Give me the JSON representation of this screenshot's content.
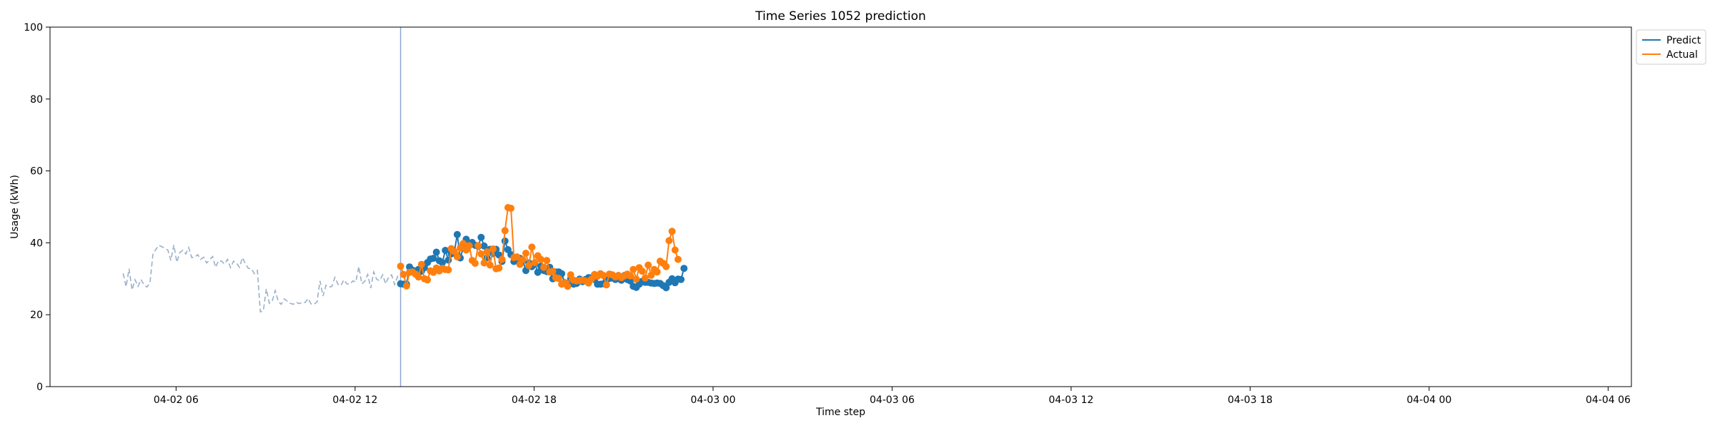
{
  "chart_data": {
    "type": "line",
    "title": "Time Series 1052 prediction",
    "xlabel": "Time step",
    "ylabel": "Usage (kWh)",
    "ylim": [
      0,
      100
    ],
    "yticks": [
      0,
      20,
      40,
      60,
      80,
      100
    ],
    "xlim_hours": [
      0,
      150
    ],
    "xticks": [
      {
        "h": 10,
        "label": "04-02 06"
      },
      {
        "h": 30,
        "label": "04-02 12"
      },
      {
        "h": 50,
        "label": "04-02 18"
      },
      {
        "h": 70,
        "label": "04-03 00"
      },
      {
        "h": 90,
        "label": "04-03 06"
      },
      {
        "h": 110,
        "label": "04-03 12"
      },
      {
        "h": 130,
        "label": "04-03 18"
      },
      {
        "h": 150,
        "label": "04-04 00"
      },
      {
        "h": 170,
        "label": "04-04 06"
      }
    ],
    "x_axis_note": "x values are 20-minute steps starting 04-02 04:05; tick labels give calendar time",
    "history": {
      "style": "dashed",
      "color": "#9ab0c9",
      "values": [
        31.5,
        27.8,
        32.8,
        26.9,
        29.7,
        27.9,
        29.8,
        28.3,
        27.7,
        28.9,
        36.8,
        38.2,
        39.3,
        38.9,
        38.5,
        38.0,
        35.1,
        39.4,
        34.6,
        37.3,
        37.9,
        36.9,
        38.7,
        35.9,
        36.0,
        36.7,
        35.4,
        36.0,
        34.4,
        35.2,
        36.2,
        33.2,
        35.1,
        34.9,
        34.1,
        35.4,
        33.1,
        34.9,
        34.4,
        33.2,
        35.9,
        34.1,
        32.9,
        32.8,
        31.4,
        32.3,
        20.8,
        21.1,
        27.2,
        23.2,
        23.8,
        26.7,
        23.7,
        22.9,
        24.4,
        23.8,
        23.2,
        22.9,
        23.5,
        23.1,
        23.4,
        23.4,
        24.5,
        23.0,
        22.9,
        23.6,
        29.4,
        25.2,
        28.2,
        27.7,
        27.9,
        30.4,
        28.5,
        28.1,
        29.7,
        28.6,
        28.5,
        29.4,
        29.1,
        33.4,
        28.6,
        29.3,
        31.2,
        27.4,
        31.9,
        29.8,
        29.5,
        31.1,
        28.6,
        30.5,
        31.1,
        28.4,
        30.6,
        28.4
      ]
    },
    "forecast_start_index": 93,
    "series": [
      {
        "name": "Predict",
        "color": "#1f77b4",
        "values": [
          28.6,
          28.5,
          28.5,
          33.3,
          32.4,
          31.9,
          32.6,
          32.1,
          33.1,
          34.5,
          35.5,
          35.7,
          37.4,
          35.0,
          34.5,
          37.9,
          35.2,
          36.9,
          37.4,
          42.3,
          35.8,
          38.6,
          41.0,
          39.4,
          40.1,
          39.3,
          39.0,
          41.5,
          39.1,
          35.8,
          38.2,
          37.0,
          38.2,
          36.6,
          34.8,
          40.5,
          38.1,
          36.7,
          34.8,
          35.5,
          35.7,
          35.1,
          32.3,
          34.4,
          33.4,
          34.3,
          31.8,
          33.5,
          32.3,
          32.0,
          33.2,
          30.0,
          31.9,
          31.9,
          31.4,
          28.9,
          28.3,
          30.0,
          28.5,
          28.7,
          29.9,
          29.2,
          29.8,
          30.3,
          30.3,
          29.8,
          28.5,
          28.5,
          28.6,
          29.7,
          30.1,
          30.2,
          29.8,
          30.9,
          29.6,
          30.9,
          29.8,
          29.4,
          27.9,
          27.6,
          28.5,
          29.3,
          29.0,
          29.0,
          28.8,
          28.7,
          28.8,
          28.7,
          28.1,
          27.5,
          29.0,
          30.0,
          28.9,
          29.9,
          29.8,
          32.9
        ]
      },
      {
        "name": "Actual",
        "color": "#ff7f0e",
        "values": [
          33.5,
          31.2,
          28.0,
          31.8,
          31.9,
          31.3,
          30.5,
          34.0,
          30.0,
          29.7,
          32.2,
          31.8,
          33.0,
          32.2,
          32.9,
          32.6,
          32.5,
          38.4,
          37.6,
          36.1,
          38.6,
          39.8,
          38.0,
          39.2,
          35.1,
          34.3,
          39.2,
          36.9,
          34.4,
          37.5,
          33.8,
          38.3,
          32.8,
          33.0,
          35.4,
          43.4,
          49.8,
          49.6,
          35.9,
          36.1,
          34.0,
          35.3,
          37.1,
          33.7,
          38.8,
          34.5,
          36.4,
          35.4,
          33.2,
          35.1,
          31.9,
          32.1,
          30.3,
          30.1,
          28.5,
          28.8,
          27.9,
          31.1,
          29.6,
          29.4,
          29.5,
          29.6,
          29.4,
          28.8,
          29.9,
          31.2,
          30.7,
          31.4,
          30.9,
          28.3,
          31.3,
          31.1,
          30.5,
          30.9,
          30.3,
          30.8,
          31.3,
          30.8,
          32.6,
          29.9,
          33.1,
          32.1,
          30.2,
          33.8,
          31.0,
          32.6,
          31.9,
          34.9,
          34.3,
          33.4,
          40.6,
          43.2,
          38.0,
          35.4
        ]
      }
    ],
    "legend_position": "top-right",
    "grid": false
  }
}
